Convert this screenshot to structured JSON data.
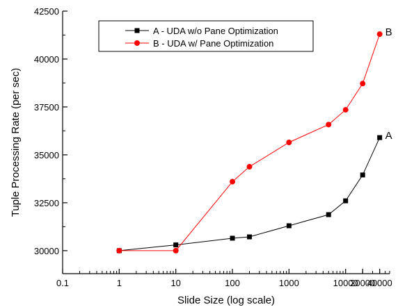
{
  "chart_data": {
    "type": "line",
    "title": "",
    "xlabel": "Slide Size (log scale)",
    "ylabel": "Tuple Processing Rate (per sec)",
    "x_scale": "log",
    "xlim": [
      0.1,
      60000
    ],
    "ylim": [
      28800,
      42500
    ],
    "x_ticks": [
      0.1,
      1,
      10,
      100,
      1000,
      10000,
      20000,
      40000
    ],
    "x_tick_labels": [
      "0.1",
      "1",
      "10",
      "100",
      "1000",
      "10000",
      "20000",
      "40000"
    ],
    "y_ticks": [
      30000,
      32500,
      35000,
      37500,
      40000,
      42500
    ],
    "y_tick_labels": [
      "30000",
      "32500",
      "35000",
      "37500",
      "40000",
      "42500"
    ],
    "grid": false,
    "legend_position": "top-left",
    "series": [
      {
        "name": "A - UDA w/o Pane Optimization",
        "end_label": "A",
        "color": "#000000",
        "marker": "square",
        "x": [
          1,
          10,
          100,
          200,
          1000,
          5000,
          10000,
          20000,
          40000
        ],
        "y": [
          30000,
          30300,
          30650,
          30720,
          31300,
          31880,
          32600,
          33950,
          35900
        ]
      },
      {
        "name": "B - UDA w/ Pane Optimization",
        "end_label": "B",
        "color": "#ff0000",
        "marker": "circle",
        "x": [
          1,
          10,
          100,
          200,
          1000,
          5000,
          10000,
          20000,
          40000
        ],
        "y": [
          30000,
          30000,
          33600,
          34380,
          35650,
          36580,
          37350,
          38720,
          41300
        ]
      }
    ]
  }
}
